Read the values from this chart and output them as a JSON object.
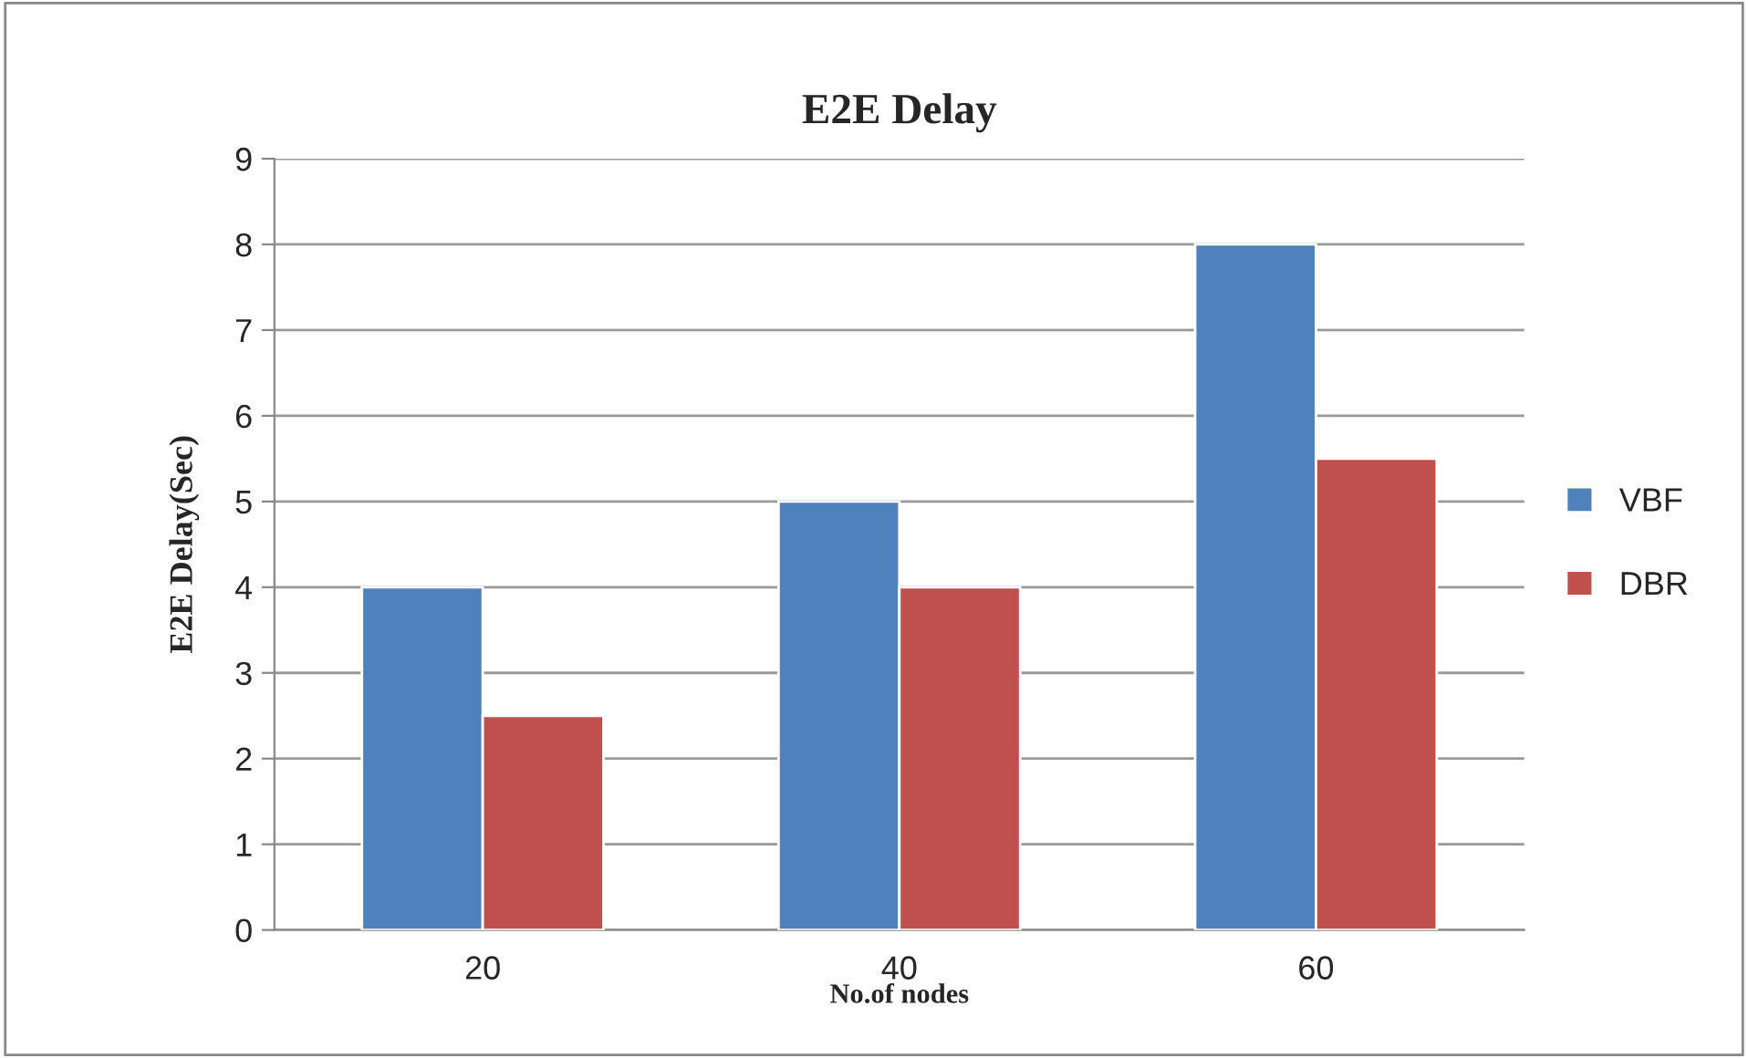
{
  "chart_data": {
    "type": "bar",
    "title": "E2E Delay",
    "xlabel": "No.of nodes",
    "ylabel": "E2E Delay(Sec)",
    "categories": [
      "20",
      "40",
      "60"
    ],
    "series": [
      {
        "name": "VBF",
        "color": "#4f81bd",
        "values": [
          4,
          5,
          8
        ]
      },
      {
        "name": "DBR",
        "color": "#c0504d",
        "values": [
          2.5,
          4,
          5.5
        ]
      }
    ],
    "ylim": [
      0,
      9
    ],
    "yticks": [
      0,
      1,
      2,
      3,
      4,
      5,
      6,
      7,
      8,
      9
    ],
    "grid": "y",
    "legend": "right"
  }
}
